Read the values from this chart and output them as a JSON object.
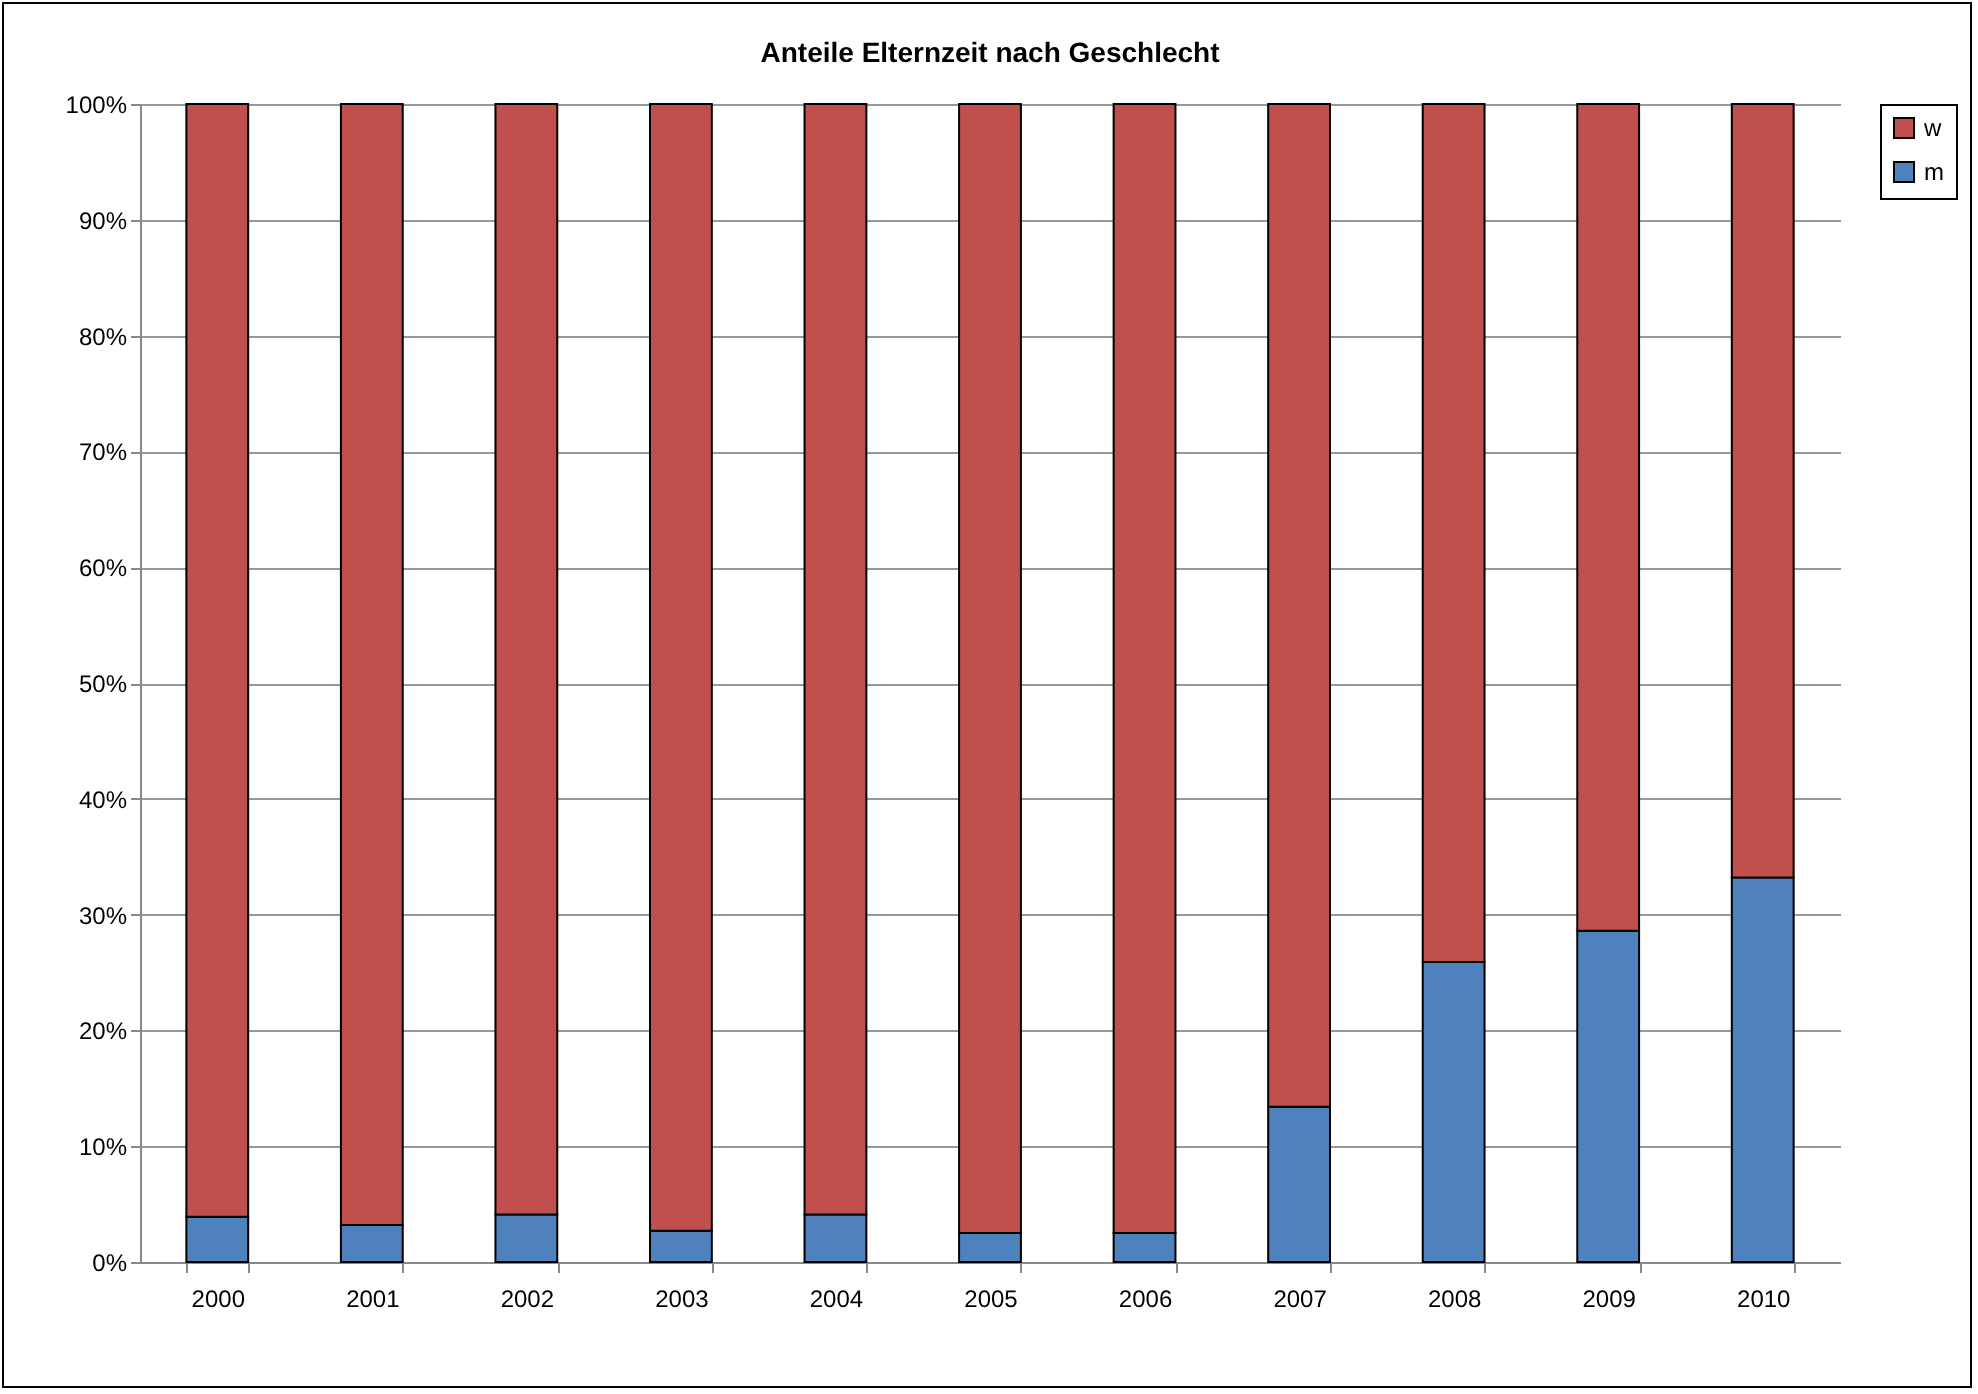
{
  "chart_data": {
    "type": "bar",
    "title": "Anteile Elternzeit nach Geschlecht",
    "categories": [
      "2000",
      "2001",
      "2002",
      "2003",
      "2004",
      "2005",
      "2006",
      "2007",
      "2008",
      "2009",
      "2010"
    ],
    "stacked": true,
    "series": [
      {
        "name": "m",
        "color": "#4f81bd",
        "values": [
          3.9,
          3.2,
          4.1,
          2.7,
          4.1,
          2.5,
          2.5,
          13.4,
          25.9,
          28.6,
          33.2
        ]
      },
      {
        "name": "w",
        "color": "#c0504d",
        "values": [
          96.1,
          96.8,
          95.9,
          97.3,
          95.9,
          97.5,
          97.5,
          86.6,
          74.1,
          71.4,
          66.8
        ]
      }
    ],
    "ylim": [
      0,
      100
    ],
    "yticks": [
      {
        "value": 0,
        "label": "0%"
      },
      {
        "value": 10,
        "label": "10%"
      },
      {
        "value": 20,
        "label": "20%"
      },
      {
        "value": 30,
        "label": "30%"
      },
      {
        "value": 40,
        "label": "40%"
      },
      {
        "value": 50,
        "label": "50%"
      },
      {
        "value": 60,
        "label": "60%"
      },
      {
        "value": 70,
        "label": "70%"
      },
      {
        "value": 80,
        "label": "80%"
      },
      {
        "value": 90,
        "label": "90%"
      },
      {
        "value": 100,
        "label": "100%"
      }
    ],
    "grid": "y",
    "legend": "right"
  }
}
